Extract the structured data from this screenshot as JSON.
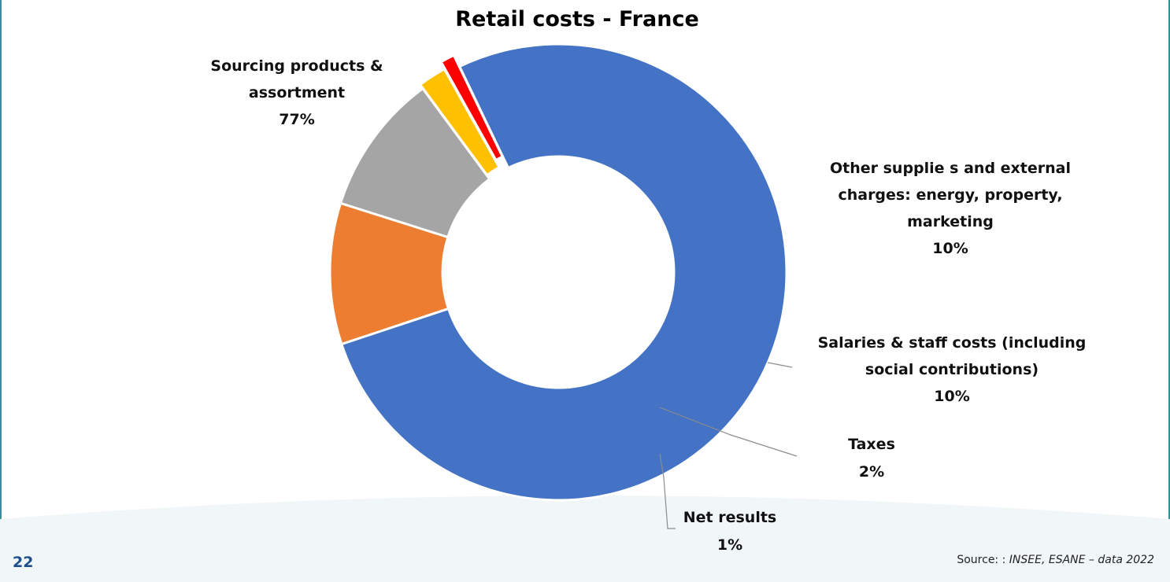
{
  "page": {
    "number": "22",
    "source_prefix": "Source: : ",
    "source_detail": "INSEE, ESANE – data 2022"
  },
  "chart_data": {
    "type": "pie",
    "donut": true,
    "title": "Retail costs - France",
    "slices": [
      {
        "label_lines": [
          "Sourcing products &",
          "assortment"
        ],
        "value": 77,
        "value_label": "77%",
        "color": "#4472c4"
      },
      {
        "label_lines": [
          "Other supplie s and external",
          "charges: energy, property,",
          "marketing"
        ],
        "value": 10,
        "value_label": "10%",
        "color": "#ed7d31"
      },
      {
        "label_lines": [
          "Salaries & staff costs (including",
          "social contributions)"
        ],
        "value": 10,
        "value_label": "10%",
        "color": "#a5a5a5"
      },
      {
        "label_lines": [
          "Taxes"
        ],
        "value": 2,
        "value_label": "2%",
        "color": "#ffc000"
      },
      {
        "label_lines": [
          "Net results"
        ],
        "value": 1,
        "value_label": "1%",
        "color": "#ff0000"
      }
    ],
    "legend": "none",
    "colors": {
      "background_band": "#f1f6f9",
      "leader_line": "#8c8c8c"
    }
  }
}
